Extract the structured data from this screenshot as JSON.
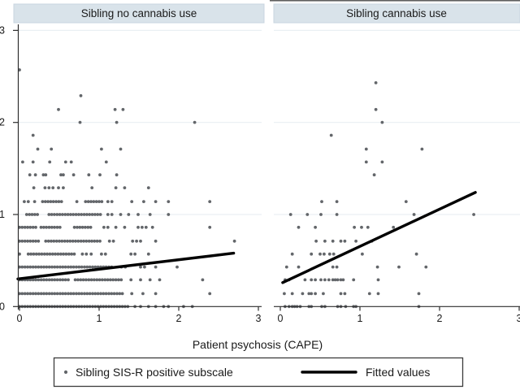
{
  "figure": {
    "x_axis_label": "Patient psychosis (CAPE)",
    "x_tick_labels": [
      "0",
      "1",
      "2",
      "3"
    ],
    "y_tick_labels": [
      "0",
      "1",
      "2",
      "3"
    ]
  },
  "panels": [
    {
      "title": "Sibling no cannabis use"
    },
    {
      "title": "Sibling cannabis use"
    }
  ],
  "legend": {
    "marker_label": "Sibling SIS-R positive subscale",
    "line_label": "Fitted values"
  },
  "colors": {
    "band": "#d9e3ea",
    "band_border": "#c9d6e0",
    "grid": "#e9eff3",
    "dot": "#63666a",
    "fit_line": "#000000",
    "axis": "#2e2e2e",
    "text": "#1a1a1a"
  },
  "chart_data": [
    {
      "type": "scatter",
      "title": "Sibling no cannabis use",
      "xlabel": "Patient psychosis (CAPE)",
      "ylabel": "Sibling SIS-R positive subscale",
      "xlim": [
        0,
        3
      ],
      "ylim": [
        0,
        3
      ],
      "x_ticks": [
        0,
        1,
        2,
        3
      ],
      "y_ticks": [
        0,
        1,
        2,
        3
      ],
      "grid": "horizontal",
      "rows": [
        {
          "y": 0.0,
          "bands": [
            [
              0,
              1.38
            ]
          ],
          "pts": [
            1.45,
            1.52,
            1.62,
            1.71,
            1.81,
            1.87,
            2.06,
            2.17
          ]
        },
        {
          "y": 0.14,
          "bands": [
            [
              0,
              1.31
            ]
          ],
          "pts": [
            1.41,
            1.55,
            1.71,
            2.39
          ]
        },
        {
          "y": 0.29,
          "bands": [
            [
              0,
              0.62
            ],
            [
              0.7,
              1.28
            ]
          ],
          "pts": [
            1.4,
            1.52,
            1.64,
            1.76,
            2.3
          ]
        },
        {
          "y": 0.43,
          "bands": [
            [
              0,
              1.18
            ]
          ],
          "pts": [
            1.28,
            1.33,
            1.52,
            1.57,
            1.71,
            1.98
          ]
        },
        {
          "y": 0.57,
          "bands": [
            [
              0,
              0.03
            ],
            [
              0.11,
              0.72
            ]
          ],
          "pts": [
            0.79,
            0.84,
            0.9,
            1.03,
            1.08,
            1.4,
            1.45,
            1.62
          ]
        },
        {
          "y": 0.71,
          "bands": [
            [
              0,
              0.27
            ],
            [
              0.33,
              1.03
            ]
          ],
          "pts": [
            1.13,
            1.18,
            1.42,
            1.47,
            1.52,
            1.71,
            2.7
          ]
        },
        {
          "y": 0.86,
          "bands": [
            [
              0,
              0.21
            ],
            [
              0.27,
              0.54
            ],
            [
              0.69,
              0.9
            ]
          ],
          "pts": [
            1.06,
            1.11,
            1.21,
            1.32,
            1.49,
            1.54,
            1.59,
            1.67,
            2.39
          ]
        },
        {
          "y": 1.0,
          "bands": [
            [
              0.09,
              0.24
            ],
            [
              0.37,
              1.03
            ]
          ],
          "pts": [
            1.11,
            1.16,
            1.27,
            1.37,
            1.49,
            1.64,
            1.87
          ]
        },
        {
          "y": 1.14,
          "bands": [
            [
              0.29,
              0.54
            ],
            [
              0.83,
              1.06
            ]
          ],
          "pts": [
            0.06,
            0.11,
            0.19,
            0.72,
            1.11,
            1.16,
            1.41,
            1.56,
            1.71,
            1.87,
            2.39
          ]
        },
        {
          "y": 1.29,
          "pts": [
            0.18,
            0.32,
            0.37,
            0.42,
            0.49,
            0.55,
            0.91,
            1.21,
            1.32,
            1.62
          ]
        },
        {
          "y": 1.43,
          "pts": [
            0.13,
            0.2,
            0.3,
            0.33,
            0.52,
            0.55,
            0.68,
            0.87,
            1.01,
            1.22
          ]
        },
        {
          "y": 1.57,
          "pts": [
            0.04,
            0.17,
            0.38,
            0.58,
            0.65,
            1.09
          ]
        },
        {
          "y": 1.71,
          "pts": [
            0.23,
            0.4,
            1.03,
            1.27
          ]
        },
        {
          "y": 1.86,
          "pts": [
            0.17
          ]
        },
        {
          "y": 2.0,
          "pts": [
            0.76,
            1.22,
            2.2
          ]
        },
        {
          "y": 2.14,
          "pts": [
            0.49,
            1.2,
            1.3
          ]
        },
        {
          "y": 2.29,
          "pts": [
            0.77
          ]
        },
        {
          "y": 2.57,
          "pts": [
            0.0
          ]
        }
      ],
      "fit_line": {
        "x": [
          -0.02,
          2.69
        ],
        "y": [
          0.3,
          0.58
        ]
      }
    },
    {
      "type": "scatter",
      "title": "Sibling cannabis use",
      "xlabel": "Patient psychosis (CAPE)",
      "ylabel": "Sibling SIS-R positive subscale",
      "xlim": [
        0,
        3
      ],
      "ylim": [
        0,
        3
      ],
      "x_ticks": [
        0,
        1,
        2,
        3
      ],
      "y_ticks": [
        0,
        1,
        2,
        3
      ],
      "grid": "horizontal",
      "rows": [
        {
          "y": 0.0,
          "pts": [
            0.06,
            0.11,
            0.15,
            0.18,
            0.21,
            0.25,
            0.36,
            0.39,
            0.52,
            0.56,
            0.72,
            0.76,
            0.82,
            0.92,
            0.95,
            1.74
          ]
        },
        {
          "y": 0.14,
          "pts": [
            0.05,
            0.15,
            0.28,
            0.36,
            0.39,
            0.44,
            0.54,
            0.76,
            0.81,
            1.12,
            1.23,
            1.74
          ]
        },
        {
          "y": 0.29,
          "pts": [
            0.06,
            0.11,
            0.31,
            0.39,
            0.44,
            0.51,
            0.56,
            0.61,
            0.66,
            0.69,
            0.72,
            0.76,
            0.79,
            0.92,
            1.23
          ]
        },
        {
          "y": 0.43,
          "pts": [
            0.08,
            0.23,
            0.66,
            0.71,
            1.22,
            1.49,
            1.83
          ]
        },
        {
          "y": 0.57,
          "pts": [
            0.15,
            0.39,
            0.5,
            0.55,
            0.62,
            0.67,
            1.03,
            1.71
          ]
        },
        {
          "y": 0.71,
          "pts": [
            0.45,
            0.56,
            0.66,
            0.76,
            0.81,
            0.95,
            1.15
          ]
        },
        {
          "y": 0.86,
          "pts": [
            0.23,
            0.44,
            0.93,
            1.02,
            1.1,
            1.42
          ]
        },
        {
          "y": 1.0,
          "pts": [
            0.13,
            0.34,
            0.51,
            0.71,
            1.68,
            2.43
          ]
        },
        {
          "y": 1.14,
          "pts": [
            0.52,
            0.71,
            1.58
          ]
        },
        {
          "y": 1.43,
          "pts": [
            1.18
          ]
        },
        {
          "y": 1.57,
          "pts": [
            1.08,
            1.28
          ]
        },
        {
          "y": 1.71,
          "pts": [
            1.08,
            1.78
          ]
        },
        {
          "y": 1.86,
          "pts": [
            0.64
          ]
        },
        {
          "y": 2.0,
          "pts": [
            1.28
          ]
        },
        {
          "y": 2.14,
          "pts": [
            1.2
          ]
        },
        {
          "y": 2.43,
          "pts": [
            1.2
          ]
        }
      ],
      "fit_line": {
        "x": [
          0.03,
          2.45
        ],
        "y": [
          0.26,
          1.24
        ]
      }
    }
  ]
}
